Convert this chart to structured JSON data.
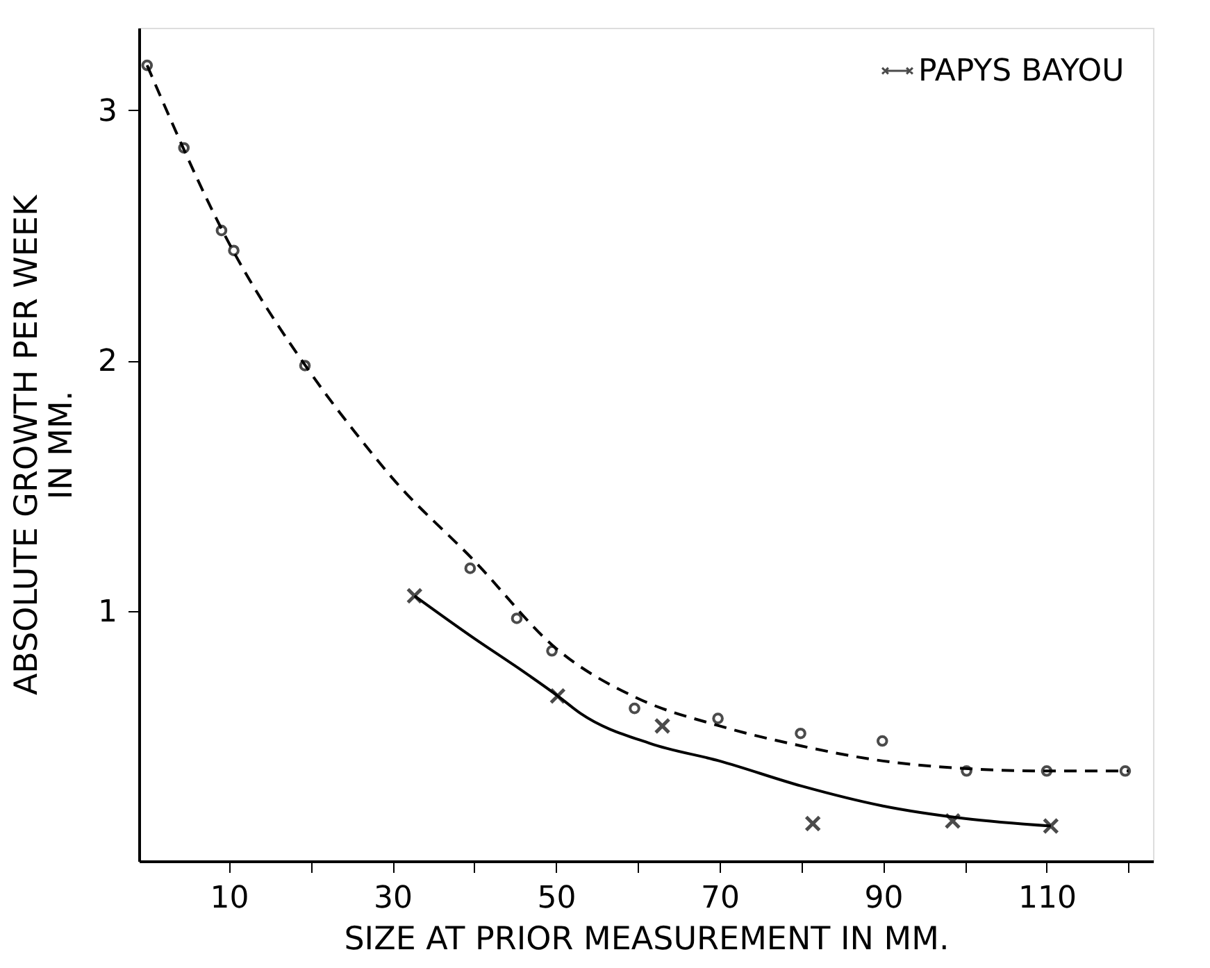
{
  "chart_data": {
    "type": "scatter",
    "xlabel": "SIZE AT PRIOR MEASUREMENT IN MM.",
    "ylabel": "ABSOLUTE GROWTH PER WEEK\nIN MM.",
    "xlim": [
      -1,
      123
    ],
    "xticks": [
      10,
      {
        "value": 20,
        "label": null
      },
      30,
      {
        "value": 40,
        "label": null
      },
      50,
      {
        "value": 60,
        "label": null
      },
      70,
      {
        "value": 80,
        "label": null
      },
      90,
      {
        "value": 100,
        "label": null
      },
      110,
      {
        "value": 120,
        "label": null
      }
    ],
    "ylim": [
      0,
      3.33
    ],
    "yticks": [
      1,
      2,
      3
    ],
    "grid": false,
    "legend": "top right",
    "series": [
      {
        "color": "#000000",
        "marker": "circle",
        "x": [
          0,
          4.5,
          9.1,
          10.6,
          19.3,
          39.5,
          45.2,
          49.5,
          59.6,
          69.8,
          79.9,
          89.9,
          100.2,
          110,
          119.6
        ],
        "values": [
          3.18,
          2.85,
          2.52,
          2.44,
          1.98,
          1.17,
          0.97,
          0.84,
          0.61,
          0.57,
          0.51,
          0.48,
          0.36,
          0.36,
          0.36
        ]
      },
      {
        "type": "line",
        "color": "#000000",
        "marker": "none",
        "line_style": "dashed",
        "x": [
          0,
          10,
          20,
          26,
          30,
          40,
          50,
          60,
          70,
          80,
          90,
          100,
          110,
          120
        ],
        "values": [
          3.18,
          2.47,
          1.95,
          1.69,
          1.53,
          1.2,
          0.85,
          0.65,
          0.54,
          0.46,
          0.4,
          0.37,
          0.36,
          0.36
        ]
      },
      {
        "name": "PAPYS BAYOU",
        "color": "#000000",
        "marker": "cross",
        "x": [
          32.7,
          50.2,
          63,
          81.4,
          98.5,
          110.5
        ],
        "values": [
          1.06,
          0.66,
          0.54,
          0.15,
          0.16,
          0.14
        ]
      },
      {
        "type": "line",
        "color": "#000000",
        "marker": "none",
        "line_style": "solid",
        "x": [
          32.7,
          40,
          45,
          50.2,
          53,
          61.5,
          70,
          80,
          90,
          100,
          110.5
        ],
        "values": [
          1.06,
          0.89,
          0.78,
          0.66,
          0.59,
          0.47,
          0.4,
          0.3,
          0.22,
          0.17,
          0.14
        ]
      }
    ]
  }
}
